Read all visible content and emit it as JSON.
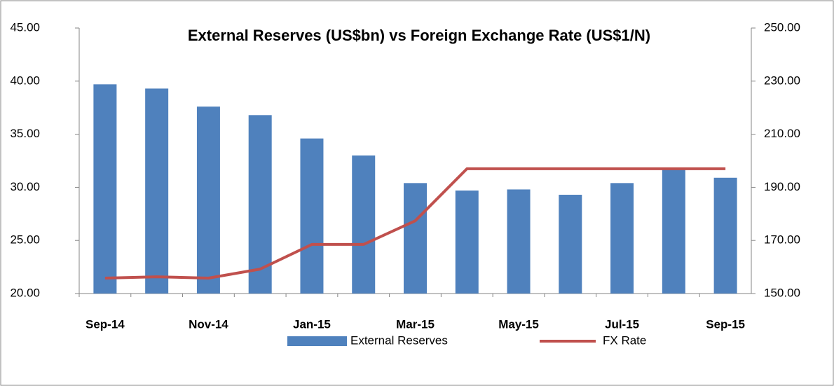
{
  "chart_data": {
    "type": "bar_line",
    "title": "External Reserves (US$bn) vs Foreign Exchange Rate (US$1/N)",
    "categories": [
      "Sep-14",
      null,
      "Nov-14",
      null,
      "Jan-15",
      null,
      "Mar-15",
      null,
      "May-15",
      null,
      "Jul-15",
      null,
      "Sep-15"
    ],
    "series": [
      {
        "name": "External Reserves",
        "type": "bar",
        "color": "#4f81bd",
        "axis": "y",
        "values": [
          39.7,
          39.3,
          37.6,
          36.8,
          34.6,
          33.0,
          30.4,
          29.7,
          29.8,
          29.3,
          30.4,
          31.8,
          30.9
        ]
      },
      {
        "name": "FX Rate",
        "type": "line",
        "color": "#c0504d",
        "axis": "y2",
        "values": [
          155.8,
          156.3,
          155.8,
          159.2,
          168.5,
          168.5,
          177.4,
          197.0,
          197.0,
          197.0,
          197.0,
          197.0,
          197.0
        ]
      }
    ],
    "ylim": [
      20,
      45
    ],
    "yticks": [
      {
        "value": 20,
        "label": "20.00"
      },
      {
        "value": 25,
        "label": "25.00"
      },
      {
        "value": 30,
        "label": "30.00"
      },
      {
        "value": 35,
        "label": "35.00"
      },
      {
        "value": 40,
        "label": "40.00"
      },
      {
        "value": 45,
        "label": "45.00"
      }
    ],
    "y2lim": [
      150,
      250
    ],
    "y2ticks": [
      {
        "value": 150,
        "label": "150.00"
      },
      {
        "value": 170,
        "label": "170.00"
      },
      {
        "value": 190,
        "label": "190.00"
      },
      {
        "value": 210,
        "label": "210.00"
      },
      {
        "value": 230,
        "label": "230.00"
      },
      {
        "value": 250,
        "label": "250.00"
      }
    ],
    "grid": false,
    "legend": "bottom"
  }
}
